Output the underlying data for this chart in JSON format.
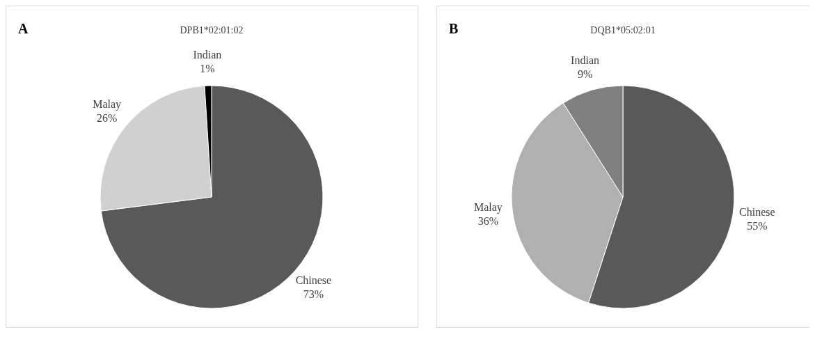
{
  "chart_data": [
    {
      "type": "pie",
      "title": "DPB1*02:01:02",
      "annotations": [
        "A"
      ],
      "categories": [
        "Chinese",
        "Malay",
        "Indian"
      ],
      "values": [
        73,
        26,
        1
      ],
      "value_labels": [
        "73%",
        "26%",
        "1%"
      ],
      "colors": [
        "#595959",
        "#d0d0d0",
        "#000000"
      ]
    },
    {
      "type": "pie",
      "title": "DQB1*05:02:01",
      "annotations": [
        "B"
      ],
      "categories": [
        "Chinese",
        "Malay",
        "Indian"
      ],
      "values": [
        55,
        36,
        9
      ],
      "value_labels": [
        "55%",
        "36%",
        "9%"
      ],
      "colors": [
        "#595959",
        "#b0b0b0",
        "#808080"
      ]
    }
  ]
}
